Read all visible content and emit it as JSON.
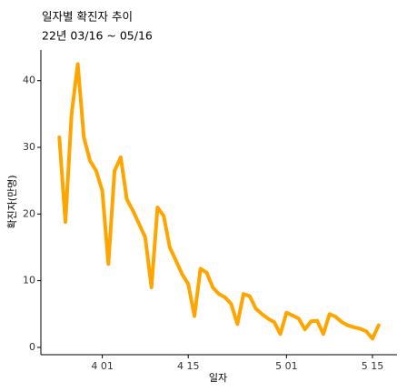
{
  "chart_data": {
    "type": "line",
    "title": "일자별 확진자 추이",
    "subtitle": "22년 03/16 ~ 05/16",
    "xlabel": "일자",
    "ylabel": "확진자(만명)",
    "x": [
      "03-25",
      "03-26",
      "03-27",
      "03-28",
      "03-29",
      "03-30",
      "03-31",
      "04-01",
      "04-02",
      "04-03",
      "04-04",
      "04-05",
      "04-06",
      "04-07",
      "04-08",
      "04-09",
      "04-10",
      "04-11",
      "04-12",
      "04-13",
      "04-14",
      "04-15",
      "04-16",
      "04-17",
      "04-18",
      "04-19",
      "04-20",
      "04-21",
      "04-22",
      "04-23",
      "04-24",
      "04-25",
      "04-26",
      "04-27",
      "04-28",
      "04-29",
      "04-30",
      "05-01",
      "05-02",
      "05-03",
      "05-04",
      "05-05",
      "05-06",
      "05-07",
      "05-08",
      "05-09",
      "05-10",
      "05-11",
      "05-12",
      "05-13",
      "05-14",
      "05-15",
      "05-16"
    ],
    "series": [
      {
        "name": "확진자",
        "color": "#FFA500",
        "values": [
          31.5,
          18.8,
          35,
          42.5,
          31.5,
          28,
          26.5,
          23.5,
          12.5,
          26.5,
          28.5,
          22.2,
          20.5,
          18.5,
          16.5,
          9,
          21,
          19.7,
          15,
          13,
          11,
          9.5,
          4.7,
          11.8,
          11.2,
          9,
          8,
          7.5,
          6.5,
          3.5,
          8,
          7.7,
          5.8,
          5,
          4.3,
          3.8,
          2,
          5.2,
          4.8,
          4.3,
          2.7,
          3.9,
          4,
          2,
          5,
          4.6,
          3.8,
          3.3,
          3,
          2.8,
          2.4,
          1.3,
          3.3
        ]
      }
    ],
    "xlim": [
      "03-22",
      "05-19"
    ],
    "xticks": [
      {
        "value": "04-01",
        "label": "4 01"
      },
      {
        "value": "04-15",
        "label": "4 15"
      },
      {
        "value": "05-01",
        "label": "5 01"
      },
      {
        "value": "05-15",
        "label": "5 15"
      }
    ],
    "ylim": [
      -1.1,
      44.6
    ],
    "yticks": [
      0,
      10,
      20,
      30,
      40
    ],
    "grid": false
  }
}
